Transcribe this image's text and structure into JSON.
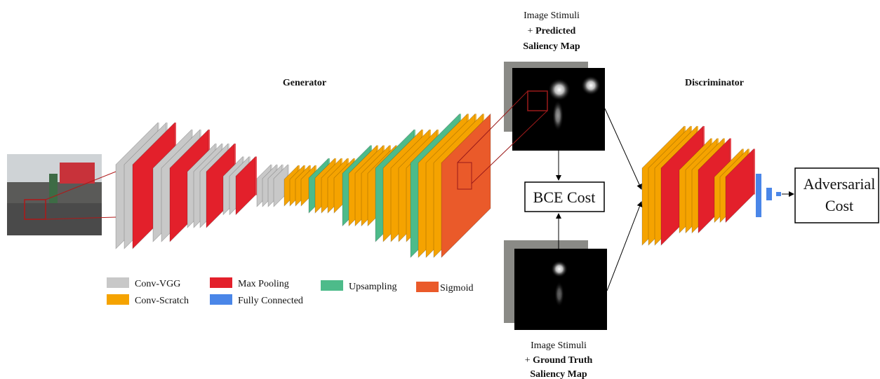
{
  "generator": {
    "title": "Generator"
  },
  "discriminator": {
    "title": "Discriminator"
  },
  "predicted": {
    "line1": "Image Stimuli",
    "plus": "+",
    "line2": "Predicted",
    "line3": "Saliency Map"
  },
  "ground_truth": {
    "line1": "Image Stimuli",
    "plus": "+",
    "line2": "Ground Truth",
    "line3": "Saliency Map"
  },
  "bce": {
    "label": "BCE Cost"
  },
  "adversarial": {
    "line1": "Adversarial",
    "line2": "Cost"
  },
  "legend": {
    "items": [
      {
        "label": "Conv-VGG",
        "color": "#c8c8c8"
      },
      {
        "label": "Conv-Scratch",
        "color": "#f5a300"
      },
      {
        "label": "Max Pooling",
        "color": "#e3202b"
      },
      {
        "label": "Fully Connected",
        "color": "#4a86e8"
      },
      {
        "label": "Upsampling",
        "color": "#4dbb8a"
      },
      {
        "label": "Sigmoid",
        "color": "#ea5a2a"
      }
    ]
  }
}
